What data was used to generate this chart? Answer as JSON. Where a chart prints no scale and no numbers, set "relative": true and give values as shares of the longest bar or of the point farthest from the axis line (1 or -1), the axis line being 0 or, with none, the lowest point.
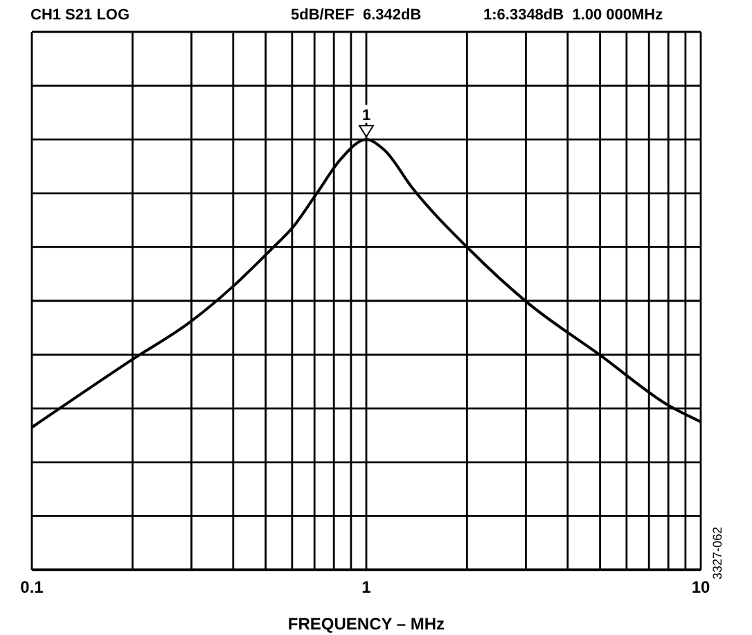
{
  "chart_data": {
    "type": "line",
    "relative": true,
    "xlabel": "FREQUENCY – MHz",
    "log": "x",
    "xlim": [
      0.1,
      10
    ],
    "xticks": [
      0.1,
      {
        "value": 0.2,
        "label": null
      },
      {
        "value": 0.3,
        "label": null
      },
      {
        "value": 0.4,
        "label": null
      },
      {
        "value": 0.5,
        "label": null
      },
      {
        "value": 0.6,
        "label": null
      },
      {
        "value": 0.7,
        "label": null
      },
      {
        "value": 0.8,
        "label": null
      },
      {
        "value": 0.9,
        "label": null
      },
      1,
      {
        "value": 2,
        "label": null
      },
      {
        "value": 3,
        "label": null
      },
      {
        "value": 4,
        "label": null
      },
      {
        "value": 5,
        "label": null
      },
      {
        "value": 6,
        "label": null
      },
      {
        "value": 7,
        "label": null
      },
      {
        "value": 8,
        "label": null
      },
      {
        "value": 9,
        "label": null
      },
      10
    ],
    "x": [
      0.1,
      0.2,
      0.3,
      0.4,
      0.52,
      0.6,
      0.71,
      0.84,
      1,
      1.13,
      1.38,
      2.03,
      3.02,
      5.02,
      8.09,
      10
    ],
    "series": [
      {
        "color": "#000000",
        "values": [
          0.331,
          0.489,
          0.578,
          0.659,
          0.745,
          0.794,
          0.874,
          0.955,
          1,
          0.976,
          0.885,
          0.745,
          0.622,
          0.498,
          0.38,
          0.344
        ]
      }
    ],
    "grid": true,
    "annotations": [
      "CH1 S21 LOG",
      "5dB/REF  6.342dB",
      "1:6.3348dB  1.00 000MHz",
      {
        "text": "1",
        "x": 1,
        "y": 1
      },
      "3327-062"
    ]
  }
}
